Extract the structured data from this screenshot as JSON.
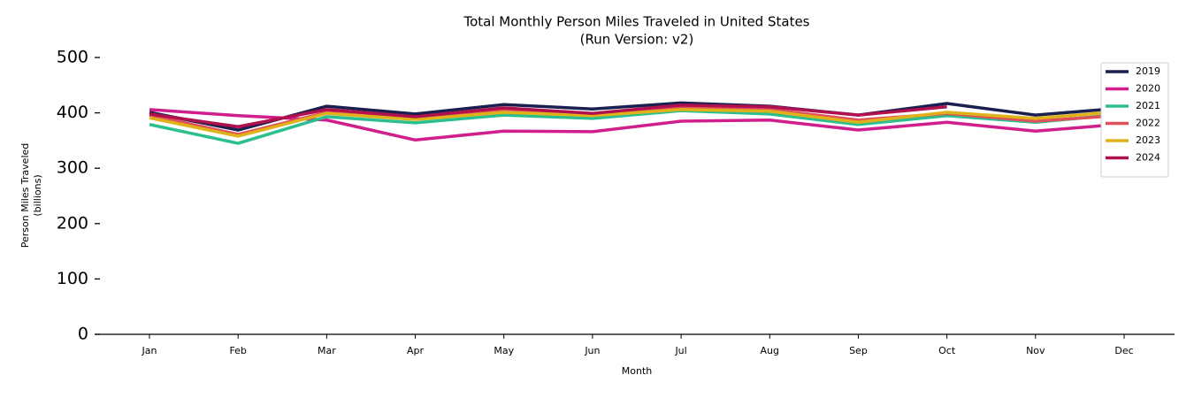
{
  "chart_data": {
    "type": "line",
    "title": "Total Monthly Person Miles Traveled in United States",
    "subtitle": "(Run Version: v2)",
    "ylabel": [
      "Person Miles Traveled",
      "(billions)"
    ],
    "xlabel": "Month",
    "categories": [
      "Jan",
      "Feb",
      "Mar",
      "Apr",
      "May",
      "Jun",
      "Jul",
      "Aug",
      "Sep",
      "Oct",
      "Nov",
      "Dec"
    ],
    "ylim": [
      0,
      500
    ],
    "yticks": [
      0,
      100,
      200,
      300,
      400,
      500
    ],
    "grid": false,
    "legend": "upper right",
    "series": [
      {
        "name": "2019",
        "color": "#1b1f4f",
        "values": [
          401,
          369,
          412,
          398,
          415,
          407,
          418,
          412,
          396,
          417,
          396,
          409
        ]
      },
      {
        "name": "2020",
        "color": "#d01f8a",
        "values": [
          406,
          395,
          387,
          351,
          367,
          366,
          385,
          387,
          369,
          383,
          367,
          380
        ]
      },
      {
        "name": "2021",
        "color": "#2bbf8f",
        "values": [
          379,
          345,
          393,
          382,
          396,
          390,
          404,
          398,
          379,
          395,
          383,
          398
        ]
      },
      {
        "name": "2022",
        "color": "#e0505a",
        "values": [
          396,
          361,
          401,
          391,
          404,
          396,
          409,
          406,
          387,
          399,
          385,
          396
        ]
      },
      {
        "name": "2023",
        "color": "#e0b21a",
        "values": [
          391,
          358,
          399,
          388,
          401,
          395,
          406,
          403,
          383,
          401,
          390,
          403
        ]
      },
      {
        "name": "2024",
        "color": "#b0104e",
        "values": [
          398,
          375,
          406,
          393,
          409,
          399,
          414,
          411,
          396,
          411,
          null,
          null
        ]
      }
    ]
  }
}
